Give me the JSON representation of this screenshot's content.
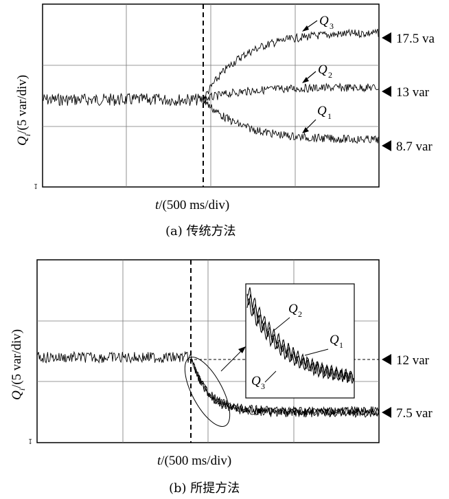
{
  "chart_data": [
    {
      "type": "line",
      "caption": "(a) 传统方法",
      "ylabel": "Q_i/(5 var/div)",
      "xlabel": "t/(500 ms/div)",
      "x_unit_per_div": "500 ms",
      "y_unit_per_div": "5 var",
      "grid": true,
      "event_label": "",
      "series": [
        {
          "name": "Q3",
          "initial": 12,
          "final": 17.5,
          "final_label": "17.5 va"
        },
        {
          "name": "Q2",
          "initial": 12,
          "final": 13,
          "final_label": "13 var"
        },
        {
          "name": "Q1",
          "initial": 12,
          "final": 8.7,
          "final_label": "8.7 var"
        }
      ]
    },
    {
      "type": "line",
      "caption": "(b) 所提方法",
      "ylabel": "Q_i/(5 var/div)",
      "xlabel": "t/(500 ms/div)",
      "x_unit_per_div": "500 ms",
      "y_unit_per_div": "5 var",
      "grid": true,
      "reference_label": "12 var",
      "series": [
        {
          "name": "Q1",
          "initial": 12,
          "final": 7.5
        },
        {
          "name": "Q2",
          "initial": 12,
          "final": 7.5
        },
        {
          "name": "Q3",
          "initial": 12,
          "final": 7.5
        }
      ],
      "final_label": "7.5 var",
      "inset_labels": [
        "Q2",
        "Q1",
        "Q3"
      ]
    }
  ],
  "labels": {
    "a_ylabel_main": "Q",
    "a_ylabel_sub": "i",
    "a_ylabel_rest": "/(5 var/div)",
    "a_xlabel_t": "t",
    "a_xlabel_rest": "/(500 ms/div)",
    "a_caption": "(a) 传统方法",
    "a_q3": "Q",
    "a_q3_sub": "3",
    "a_q2": "Q",
    "a_q2_sub": "2",
    "a_q1": "Q",
    "a_q1_sub": "1",
    "a_r1": "17.5 va",
    "a_r2": "13 var",
    "a_r3": "8.7 var",
    "b_ylabel_main": "Q",
    "b_ylabel_sub": "i",
    "b_ylabel_rest": "/(5 var/div)",
    "b_xlabel_t": "t",
    "b_xlabel_rest": "/(500 ms/div)",
    "b_caption": "(b) 所提方法",
    "b_r1": "12 var",
    "b_r2": "7.5 var",
    "b_q2": "Q",
    "b_q2_sub": "2",
    "b_q1": "Q",
    "b_q1_sub": "1",
    "b_q3": "Q",
    "b_q3_sub": "3"
  }
}
